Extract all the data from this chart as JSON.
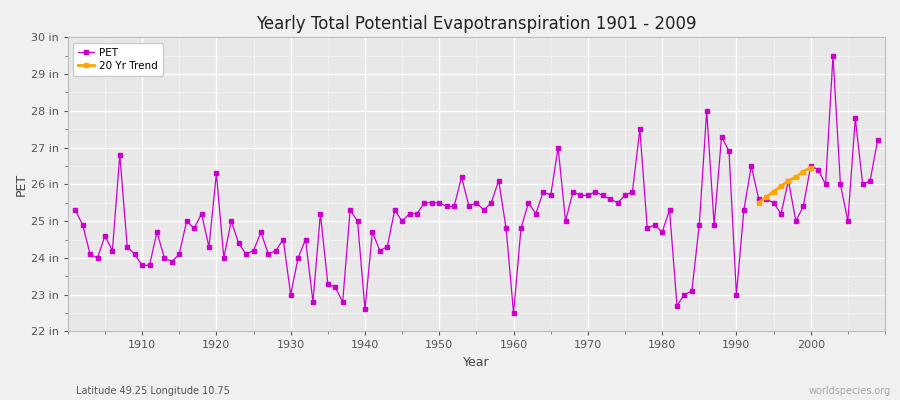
{
  "title": "Yearly Total Potential Evapotranspiration 1901 - 2009",
  "xlabel": "Year",
  "ylabel": "PET",
  "footnote_left": "Latitude 49.25 Longitude 10.75",
  "footnote_right": "worldspecies.org",
  "bg_color": "#f0f0f0",
  "plot_bg_color": "#e8e8e8",
  "line_color": "#cc00cc",
  "trend_color": "#ffa500",
  "ylim": [
    22,
    30
  ],
  "ytick_labels": [
    "22 in",
    "23 in",
    "24 in",
    "25 in",
    "26 in",
    "27 in",
    "28 in",
    "29 in",
    "30 in"
  ],
  "ytick_values": [
    22,
    23,
    24,
    25,
    26,
    27,
    28,
    29,
    30
  ],
  "years": [
    1901,
    1902,
    1903,
    1904,
    1905,
    1906,
    1907,
    1908,
    1909,
    1910,
    1911,
    1912,
    1913,
    1914,
    1915,
    1916,
    1917,
    1918,
    1919,
    1920,
    1921,
    1922,
    1923,
    1924,
    1925,
    1926,
    1927,
    1928,
    1929,
    1930,
    1931,
    1932,
    1933,
    1934,
    1935,
    1936,
    1937,
    1938,
    1939,
    1940,
    1941,
    1942,
    1943,
    1944,
    1945,
    1946,
    1947,
    1948,
    1949,
    1950,
    1951,
    1952,
    1953,
    1954,
    1955,
    1956,
    1957,
    1958,
    1959,
    1960,
    1961,
    1962,
    1963,
    1964,
    1965,
    1966,
    1967,
    1968,
    1969,
    1970,
    1971,
    1972,
    1973,
    1974,
    1975,
    1976,
    1977,
    1978,
    1979,
    1980,
    1981,
    1982,
    1983,
    1984,
    1985,
    1986,
    1987,
    1988,
    1989,
    1990,
    1991,
    1992,
    1993,
    1994,
    1995,
    1996,
    1997,
    1998,
    1999,
    2000,
    2001,
    2002,
    2003,
    2004,
    2005,
    2006,
    2007,
    2008,
    2009
  ],
  "pet_values": [
    25.3,
    24.9,
    24.1,
    24.0,
    24.6,
    24.2,
    26.8,
    24.3,
    24.1,
    23.8,
    23.8,
    24.7,
    24.0,
    23.9,
    24.1,
    25.0,
    24.8,
    25.2,
    24.3,
    26.3,
    24.0,
    25.0,
    24.4,
    24.1,
    24.2,
    24.7,
    24.1,
    24.2,
    24.5,
    23.0,
    24.0,
    24.5,
    22.8,
    25.2,
    23.3,
    23.2,
    22.8,
    25.3,
    25.0,
    22.6,
    24.7,
    24.2,
    24.3,
    25.3,
    25.0,
    25.2,
    25.2,
    25.5,
    25.5,
    25.5,
    25.4,
    25.4,
    26.2,
    25.4,
    25.5,
    25.3,
    25.5,
    26.1,
    24.8,
    22.5,
    24.8,
    25.5,
    25.2,
    25.8,
    25.7,
    27.0,
    25.0,
    25.8,
    25.7,
    25.7,
    25.8,
    25.7,
    25.6,
    25.5,
    25.7,
    25.8,
    27.5,
    24.8,
    24.9,
    24.7,
    25.3,
    22.7,
    23.0,
    23.1,
    24.9,
    28.0,
    24.9,
    27.3,
    26.9,
    23.0,
    25.3,
    26.5,
    25.6,
    25.6,
    25.5,
    25.2,
    26.1,
    25.0,
    25.4,
    26.5,
    26.4,
    26.0,
    29.5,
    26.0,
    25.0,
    27.8,
    26.0,
    26.1,
    27.2
  ],
  "trend_years": [
    1993,
    1994,
    1995,
    1996,
    1997,
    1998,
    1999,
    2000
  ],
  "trend_values": [
    25.5,
    25.65,
    25.8,
    25.95,
    26.1,
    26.2,
    26.35,
    26.45
  ],
  "xticks": [
    1910,
    1920,
    1930,
    1940,
    1950,
    1960,
    1970,
    1980,
    1990,
    2000
  ]
}
